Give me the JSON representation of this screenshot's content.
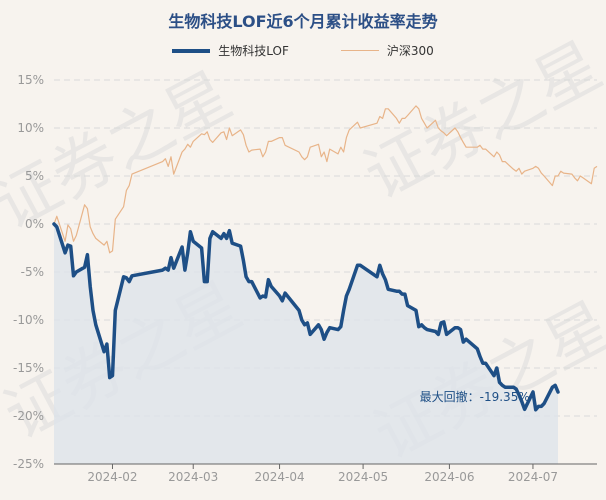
{
  "chart_data": {
    "type": "line",
    "title": "生物科技LOF近6个月累计收益率走势",
    "xlabel": "",
    "ylabel": "",
    "ylim": [
      -25,
      15
    ],
    "yticks": [
      15,
      10,
      5,
      0,
      -5,
      -10,
      -15,
      -20,
      -25
    ],
    "ytick_labels": [
      "15%",
      "10%",
      "5%",
      "0%",
      "-5%",
      "-10%",
      "-15%",
      "-20%",
      "-25%"
    ],
    "x_start": "2024-01-11",
    "x_end": "2024-07-24",
    "xticks": [
      {
        "date": "2024-02-01",
        "label": "2024-02"
      },
      {
        "date": "2024-03-01",
        "label": "2024-03"
      },
      {
        "date": "2024-04-01",
        "label": "2024-04"
      },
      {
        "date": "2024-05-01",
        "label": "2024-05"
      },
      {
        "date": "2024-06-01",
        "label": "2024-06"
      },
      {
        "date": "2024-07-01",
        "label": "2024-07"
      }
    ],
    "legend_position": "top",
    "grid": true,
    "series": [
      {
        "name": "生物科技LOF",
        "color": "#1e4f86",
        "style": "thick-line-with-area",
        "points": [
          [
            "2024-01-11",
            0
          ],
          [
            "2024-01-12",
            -0.3
          ],
          [
            "2024-01-15",
            -3.0
          ],
          [
            "2024-01-16",
            -2.2
          ],
          [
            "2024-01-17",
            -2.3
          ],
          [
            "2024-01-18",
            -5.4
          ],
          [
            "2024-01-19",
            -5.0
          ],
          [
            "2024-01-22",
            -4.5
          ],
          [
            "2024-01-23",
            -3.2
          ],
          [
            "2024-01-24",
            -6.5
          ],
          [
            "2024-01-25",
            -9.0
          ],
          [
            "2024-01-26",
            -10.5
          ],
          [
            "2024-01-29",
            -13.3
          ],
          [
            "2024-01-30",
            -12.5
          ],
          [
            "2024-01-31",
            -16.0
          ],
          [
            "2024-02-01",
            -15.8
          ],
          [
            "2024-02-02",
            -9.0
          ],
          [
            "2024-02-05",
            -5.5
          ],
          [
            "2024-02-06",
            -5.6
          ],
          [
            "2024-02-07",
            -6.0
          ],
          [
            "2024-02-08",
            -5.4
          ],
          [
            "2024-02-19",
            -4.8
          ],
          [
            "2024-02-20",
            -4.6
          ],
          [
            "2024-02-21",
            -4.8
          ],
          [
            "2024-02-22",
            -3.5
          ],
          [
            "2024-02-23",
            -4.6
          ],
          [
            "2024-02-26",
            -2.4
          ],
          [
            "2024-02-27",
            -4.8
          ],
          [
            "2024-02-28",
            -3.0
          ],
          [
            "2024-02-29",
            -0.8
          ],
          [
            "2024-03-01",
            -1.8
          ],
          [
            "2024-03-04",
            -2.5
          ],
          [
            "2024-03-05",
            -6.0
          ],
          [
            "2024-03-06",
            -6.0
          ],
          [
            "2024-03-07",
            -1.5
          ],
          [
            "2024-03-08",
            -0.8
          ],
          [
            "2024-03-11",
            -1.5
          ],
          [
            "2024-03-12",
            -1.0
          ],
          [
            "2024-03-13",
            -1.5
          ],
          [
            "2024-03-14",
            -0.7
          ],
          [
            "2024-03-15",
            -2.0
          ],
          [
            "2024-03-18",
            -2.3
          ],
          [
            "2024-03-19",
            -3.8
          ],
          [
            "2024-03-20",
            -5.5
          ],
          [
            "2024-03-21",
            -6.0
          ],
          [
            "2024-03-22",
            -6.0
          ],
          [
            "2024-03-25",
            -7.7
          ],
          [
            "2024-03-26",
            -7.5
          ],
          [
            "2024-03-27",
            -7.6
          ],
          [
            "2024-03-28",
            -5.8
          ],
          [
            "2024-03-29",
            -6.5
          ],
          [
            "2024-04-01",
            -7.5
          ],
          [
            "2024-04-02",
            -8.0
          ],
          [
            "2024-04-03",
            -7.2
          ],
          [
            "2024-04-08",
            -9.0
          ],
          [
            "2024-04-09",
            -10.0
          ],
          [
            "2024-04-10",
            -10.5
          ],
          [
            "2024-04-11",
            -10.3
          ],
          [
            "2024-04-12",
            -11.5
          ],
          [
            "2024-04-15",
            -10.5
          ],
          [
            "2024-04-16",
            -11.0
          ],
          [
            "2024-04-17",
            -12.0
          ],
          [
            "2024-04-18",
            -11.3
          ],
          [
            "2024-04-19",
            -10.8
          ],
          [
            "2024-04-22",
            -11.0
          ],
          [
            "2024-04-23",
            -10.7
          ],
          [
            "2024-04-24",
            -9.0
          ],
          [
            "2024-04-25",
            -7.5
          ],
          [
            "2024-04-26",
            -6.8
          ],
          [
            "2024-04-29",
            -4.3
          ],
          [
            "2024-04-30",
            -4.3
          ],
          [
            "2024-05-06",
            -5.5
          ],
          [
            "2024-05-07",
            -4.3
          ],
          [
            "2024-05-08",
            -5.2
          ],
          [
            "2024-05-09",
            -5.8
          ],
          [
            "2024-05-10",
            -6.8
          ],
          [
            "2024-05-13",
            -7.0
          ],
          [
            "2024-05-14",
            -7.0
          ],
          [
            "2024-05-15",
            -7.3
          ],
          [
            "2024-05-16",
            -7.3
          ],
          [
            "2024-05-17",
            -8.5
          ],
          [
            "2024-05-20",
            -9.0
          ],
          [
            "2024-05-21",
            -10.7
          ],
          [
            "2024-05-22",
            -10.5
          ],
          [
            "2024-05-23",
            -10.8
          ],
          [
            "2024-05-24",
            -11.0
          ],
          [
            "2024-05-27",
            -11.2
          ],
          [
            "2024-05-28",
            -11.5
          ],
          [
            "2024-05-29",
            -10.3
          ],
          [
            "2024-05-30",
            -10.2
          ],
          [
            "2024-05-31",
            -11.5
          ],
          [
            "2024-06-03",
            -10.8
          ],
          [
            "2024-06-04",
            -10.8
          ],
          [
            "2024-06-05",
            -11.0
          ],
          [
            "2024-06-06",
            -12.3
          ],
          [
            "2024-06-07",
            -12.0
          ],
          [
            "2024-06-11",
            -13.0
          ],
          [
            "2024-06-12",
            -13.8
          ],
          [
            "2024-06-13",
            -14.5
          ],
          [
            "2024-06-14",
            -14.5
          ],
          [
            "2024-06-17",
            -15.8
          ],
          [
            "2024-06-18",
            -15.0
          ],
          [
            "2024-06-19",
            -16.5
          ],
          [
            "2024-06-20",
            -16.8
          ],
          [
            "2024-06-21",
            -17.0
          ],
          [
            "2024-06-24",
            -17.0
          ],
          [
            "2024-06-25",
            -17.2
          ],
          [
            "2024-06-26",
            -17.8
          ],
          [
            "2024-06-27",
            -18.5
          ],
          [
            "2024-06-28",
            -19.3
          ],
          [
            "2024-07-01",
            -17.5
          ],
          [
            "2024-07-02",
            -19.35
          ],
          [
            "2024-07-03",
            -19.0
          ],
          [
            "2024-07-04",
            -19.0
          ],
          [
            "2024-07-05",
            -18.7
          ],
          [
            "2024-07-08",
            -17.0
          ],
          [
            "2024-07-09",
            -16.8
          ],
          [
            "2024-07-10",
            -17.5
          ]
        ]
      },
      {
        "name": "沪深300",
        "color": "#e8b489",
        "style": "thin-line",
        "points": [
          [
            "2024-01-11",
            0
          ],
          [
            "2024-01-12",
            0.8
          ],
          [
            "2024-01-15",
            -1.8
          ],
          [
            "2024-01-16",
            -0.1
          ],
          [
            "2024-01-17",
            -0.5
          ],
          [
            "2024-01-18",
            -1.8
          ],
          [
            "2024-01-19",
            -1.2
          ],
          [
            "2024-01-22",
            2.0
          ],
          [
            "2024-01-23",
            1.6
          ],
          [
            "2024-01-24",
            -0.3
          ],
          [
            "2024-01-25",
            -1.0
          ],
          [
            "2024-01-26",
            -1.5
          ],
          [
            "2024-01-29",
            -2.2
          ],
          [
            "2024-01-30",
            -1.8
          ],
          [
            "2024-01-31",
            -3.0
          ],
          [
            "2024-02-01",
            -2.8
          ],
          [
            "2024-02-02",
            0.5
          ],
          [
            "2024-02-05",
            1.8
          ],
          [
            "2024-02-06",
            3.5
          ],
          [
            "2024-02-07",
            4.0
          ],
          [
            "2024-02-08",
            5.2
          ],
          [
            "2024-02-19",
            6.5
          ],
          [
            "2024-02-20",
            6.8
          ],
          [
            "2024-02-21",
            6.0
          ],
          [
            "2024-02-22",
            7.0
          ],
          [
            "2024-02-23",
            5.2
          ],
          [
            "2024-02-26",
            7.5
          ],
          [
            "2024-02-27",
            7.8
          ],
          [
            "2024-02-28",
            8.3
          ],
          [
            "2024-02-29",
            8.0
          ],
          [
            "2024-03-01",
            8.6
          ],
          [
            "2024-03-04",
            9.4
          ],
          [
            "2024-03-05",
            9.3
          ],
          [
            "2024-03-06",
            9.6
          ],
          [
            "2024-03-07",
            8.8
          ],
          [
            "2024-03-08",
            8.5
          ],
          [
            "2024-03-11",
            9.5
          ],
          [
            "2024-03-12",
            9.6
          ],
          [
            "2024-03-13",
            8.8
          ],
          [
            "2024-03-14",
            10.0
          ],
          [
            "2024-03-15",
            9.2
          ],
          [
            "2024-03-18",
            9.8
          ],
          [
            "2024-03-19",
            9.3
          ],
          [
            "2024-03-20",
            8.2
          ],
          [
            "2024-03-21",
            7.5
          ],
          [
            "2024-03-22",
            7.7
          ],
          [
            "2024-03-25",
            7.8
          ],
          [
            "2024-03-26",
            7.0
          ],
          [
            "2024-03-27",
            7.5
          ],
          [
            "2024-03-28",
            8.6
          ],
          [
            "2024-03-29",
            8.6
          ],
          [
            "2024-04-01",
            9.0
          ],
          [
            "2024-04-02",
            9.0
          ],
          [
            "2024-04-03",
            8.2
          ],
          [
            "2024-04-08",
            7.5
          ],
          [
            "2024-04-09",
            7.0
          ],
          [
            "2024-04-10",
            6.7
          ],
          [
            "2024-04-11",
            7.0
          ],
          [
            "2024-04-12",
            8.0
          ],
          [
            "2024-04-15",
            8.3
          ],
          [
            "2024-04-16",
            7.0
          ],
          [
            "2024-04-17",
            7.5
          ],
          [
            "2024-04-18",
            6.5
          ],
          [
            "2024-04-19",
            7.8
          ],
          [
            "2024-04-22",
            7.3
          ],
          [
            "2024-04-23",
            8.0
          ],
          [
            "2024-04-24",
            7.5
          ],
          [
            "2024-04-25",
            9.0
          ],
          [
            "2024-04-26",
            9.8
          ],
          [
            "2024-04-29",
            10.6
          ],
          [
            "2024-04-30",
            10.0
          ],
          [
            "2024-05-06",
            10.5
          ],
          [
            "2024-05-07",
            11.2
          ],
          [
            "2024-05-08",
            11.0
          ],
          [
            "2024-05-09",
            12.0
          ],
          [
            "2024-05-10",
            12.0
          ],
          [
            "2024-05-13",
            11.0
          ],
          [
            "2024-05-14",
            10.5
          ],
          [
            "2024-05-15",
            11.0
          ],
          [
            "2024-05-16",
            11.0
          ],
          [
            "2024-05-17",
            11.3
          ],
          [
            "2024-05-20",
            12.3
          ],
          [
            "2024-05-21",
            12.0
          ],
          [
            "2024-05-22",
            11.0
          ],
          [
            "2024-05-23",
            10.5
          ],
          [
            "2024-05-24",
            10.0
          ],
          [
            "2024-05-27",
            10.8
          ],
          [
            "2024-05-28",
            10.0
          ],
          [
            "2024-05-29",
            9.7
          ],
          [
            "2024-05-30",
            9.5
          ],
          [
            "2024-05-31",
            9.2
          ],
          [
            "2024-06-03",
            10.0
          ],
          [
            "2024-06-04",
            9.6
          ],
          [
            "2024-06-05",
            9.0
          ],
          [
            "2024-06-06",
            8.5
          ],
          [
            "2024-06-07",
            8.0
          ],
          [
            "2024-06-11",
            8.0
          ],
          [
            "2024-06-12",
            8.2
          ],
          [
            "2024-06-13",
            7.8
          ],
          [
            "2024-06-14",
            7.8
          ],
          [
            "2024-06-17",
            7.0
          ],
          [
            "2024-06-18",
            7.5
          ],
          [
            "2024-06-19",
            7.2
          ],
          [
            "2024-06-20",
            6.5
          ],
          [
            "2024-06-21",
            6.5
          ],
          [
            "2024-06-24",
            5.7
          ],
          [
            "2024-06-25",
            5.5
          ],
          [
            "2024-06-26",
            5.8
          ],
          [
            "2024-06-27",
            5.2
          ],
          [
            "2024-06-28",
            5.5
          ],
          [
            "2024-07-01",
            5.8
          ],
          [
            "2024-07-02",
            6.0
          ],
          [
            "2024-07-03",
            5.8
          ],
          [
            "2024-07-04",
            5.3
          ],
          [
            "2024-07-05",
            5.0
          ],
          [
            "2024-07-08",
            4.0
          ],
          [
            "2024-07-09",
            5.0
          ],
          [
            "2024-07-10",
            5.0
          ],
          [
            "2024-07-11",
            5.5
          ],
          [
            "2024-07-12",
            5.3
          ],
          [
            "2024-07-15",
            5.2
          ],
          [
            "2024-07-16",
            4.8
          ],
          [
            "2024-07-17",
            4.5
          ],
          [
            "2024-07-18",
            5.0
          ],
          [
            "2024-07-19",
            4.8
          ],
          [
            "2024-07-22",
            4.2
          ],
          [
            "2024-07-23",
            5.8
          ],
          [
            "2024-07-24",
            6.0
          ]
        ]
      }
    ],
    "annotations": [
      {
        "text": "最大回撤：-19.35%",
        "date": "2024-07-02",
        "value": -19.35
      }
    ]
  },
  "watermark": "证券之星"
}
